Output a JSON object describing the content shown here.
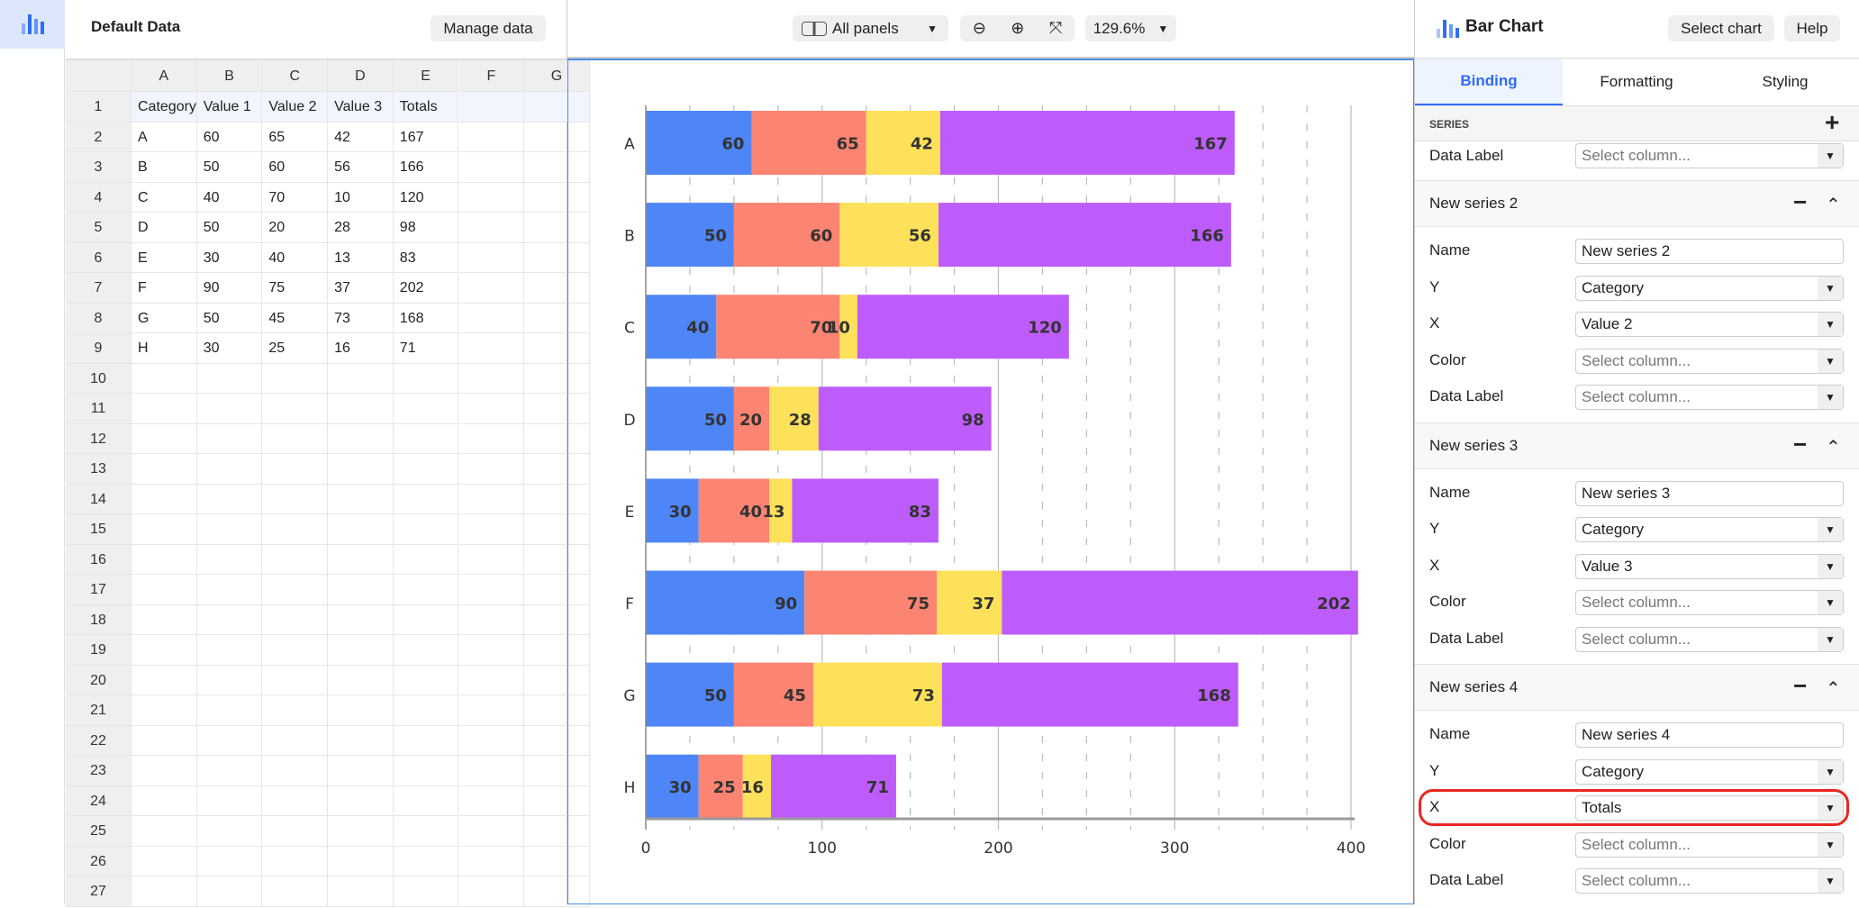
{
  "colors": {
    "accent": "#2f6df6",
    "series": [
      "#4f86f7",
      "#fc8472",
      "#fde15a",
      "#bd5cfb"
    ],
    "highlight": "#e8271f"
  },
  "nav": {
    "icon": "bar-chart-icon"
  },
  "data_panel": {
    "title": "Default Data",
    "manage_label": "Manage data"
  },
  "sheet": {
    "columns": [
      "A",
      "B",
      "C",
      "D",
      "E",
      "F",
      "G"
    ],
    "row_count": 27,
    "rows": [
      [
        "Category",
        "Value 1",
        "Value 2",
        "Value 3",
        "Totals"
      ],
      [
        "A",
        "60",
        "65",
        "42",
        "167"
      ],
      [
        "B",
        "50",
        "60",
        "56",
        "166"
      ],
      [
        "C",
        "40",
        "70",
        "10",
        "120"
      ],
      [
        "D",
        "50",
        "20",
        "28",
        "98"
      ],
      [
        "E",
        "30",
        "40",
        "13",
        "83"
      ],
      [
        "F",
        "90",
        "75",
        "37",
        "202"
      ],
      [
        "G",
        "50",
        "45",
        "73",
        "168"
      ],
      [
        "H",
        "30",
        "25",
        "16",
        "71"
      ]
    ]
  },
  "toolbar": {
    "panels_label": "All panels",
    "zoom_level": "129.6%"
  },
  "chart_data": {
    "type": "bar",
    "orientation": "horizontal",
    "stacked": true,
    "categories": [
      "A",
      "B",
      "C",
      "D",
      "E",
      "F",
      "G",
      "H"
    ],
    "series": [
      {
        "values": [
          60,
          50,
          40,
          50,
          30,
          90,
          50,
          30
        ]
      },
      {
        "values": [
          65,
          60,
          70,
          20,
          40,
          75,
          45,
          25
        ]
      },
      {
        "values": [
          42,
          56,
          10,
          28,
          13,
          37,
          73,
          16
        ]
      },
      {
        "values": [
          167,
          166,
          120,
          98,
          83,
          202,
          168,
          71
        ]
      }
    ],
    "xlim": [
      0,
      400
    ],
    "xticks": [
      "0",
      "100",
      "200",
      "300",
      "400"
    ],
    "grid": true,
    "legend": "none",
    "data_labels": true
  },
  "right_panel": {
    "title": "Bar Chart",
    "select_chart": "Select chart",
    "help": "Help",
    "tabs": [
      "Binding",
      "Formatting",
      "Styling"
    ],
    "active_tab": 0,
    "series_heading": "SERIES",
    "first_partial": {
      "label": "Data Label",
      "value": "Select column..."
    },
    "series": [
      {
        "title": "New series 2",
        "fields": [
          [
            "Name",
            "New series 2"
          ],
          [
            "Y",
            "Category"
          ],
          [
            "X",
            "Value 2"
          ],
          [
            "Color",
            "Select column..."
          ],
          [
            "Data Label",
            "Select column..."
          ]
        ]
      },
      {
        "title": "New series 3",
        "fields": [
          [
            "Name",
            "New series 3"
          ],
          [
            "Y",
            "Category"
          ],
          [
            "X",
            "Value 3"
          ],
          [
            "Color",
            "Select column..."
          ],
          [
            "Data Label",
            "Select column..."
          ]
        ]
      },
      {
        "title": "New series 4",
        "fields": [
          [
            "Name",
            "New series 4"
          ],
          [
            "Y",
            "Category"
          ],
          [
            "X",
            "Totals"
          ],
          [
            "Color",
            "Select column..."
          ],
          [
            "Data Label",
            "Select column..."
          ]
        ],
        "highlighted_field": 2
      }
    ]
  }
}
